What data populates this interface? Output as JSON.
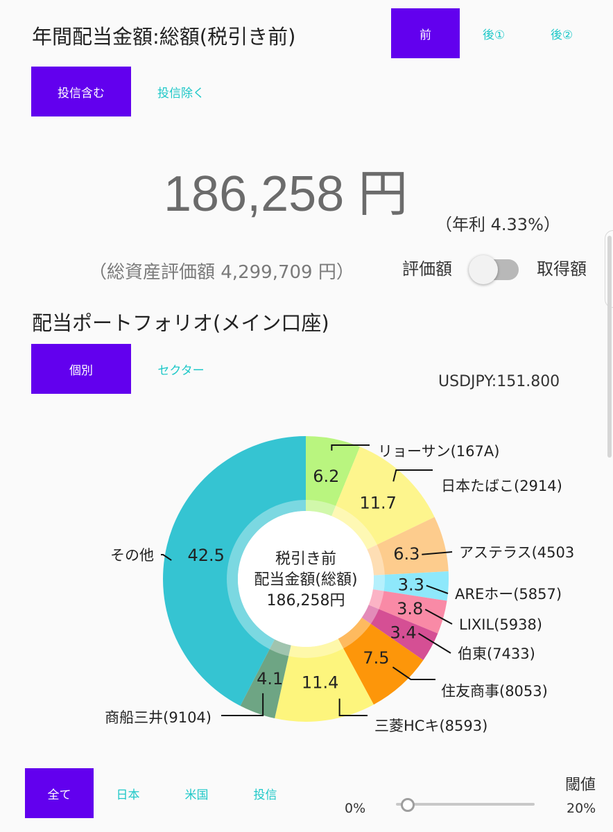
{
  "header": {
    "title": "年間配当金額:総額(税引き前)",
    "tax_tabs": [
      {
        "label": "前",
        "selected": true
      },
      {
        "label": "後①",
        "selected": false
      },
      {
        "label": "後②",
        "selected": false
      }
    ],
    "fund_tabs": [
      {
        "label": "投信含む",
        "selected": true
      },
      {
        "label": "投信除く",
        "selected": false
      }
    ]
  },
  "summary": {
    "amount": "186,258 円",
    "yield": "（年利 4.33%）",
    "total_assets": "（総資産評価額 4,299,709 円）",
    "toggle_left": "評価額",
    "toggle_right": "取得額",
    "toggle_state": "off"
  },
  "portfolio": {
    "title": "配当ポートフォリオ(メイン口座)",
    "view_tabs": [
      {
        "label": "個別",
        "selected": true
      },
      {
        "label": "セクター",
        "selected": false
      }
    ],
    "fx": "USDJPY:151.800"
  },
  "colors": {
    "accent": "#6200ee",
    "teal_text": "#1ec8c8"
  },
  "chart_data": {
    "type": "pie",
    "center_label": [
      "税引き前",
      "配当金額(総額)",
      "186,258円"
    ],
    "slices": [
      {
        "label": "リョーサン(167A)",
        "value": 6.2,
        "color": "#b9f57f"
      },
      {
        "label": "日本たばこ(2914)",
        "value": 11.7,
        "color": "#fdf58d"
      },
      {
        "label": "アステラス(4503",
        "value": 6.3,
        "color": "#fdcc8d"
      },
      {
        "label": "AREホー(5857)",
        "value": 3.3,
        "color": "#8ee8fb"
      },
      {
        "label": "LIXIL(5938)",
        "value": 3.8,
        "color": "#f98aa6"
      },
      {
        "label": "伯東(7433)",
        "value": 3.4,
        "color": "#d54f94"
      },
      {
        "label": "住友商事(8053)",
        "value": 7.5,
        "color": "#fd960a"
      },
      {
        "label": "三菱HCキ(8593)",
        "value": 11.4,
        "color": "#fdf57d"
      },
      {
        "label": "商船三井(9104)",
        "value": 4.1,
        "color": "#6ea584"
      },
      {
        "label": "その他",
        "value": 42.5,
        "color": "#35c4d2"
      }
    ]
  },
  "footer": {
    "region_tabs": [
      {
        "label": "全て",
        "selected": true
      },
      {
        "label": "日本",
        "selected": false
      },
      {
        "label": "米国",
        "selected": false
      },
      {
        "label": "投信",
        "selected": false
      }
    ],
    "threshold_label": "閾値",
    "slider_min": "0%",
    "slider_max": "20%",
    "slider_value_fraction": 0.07
  }
}
